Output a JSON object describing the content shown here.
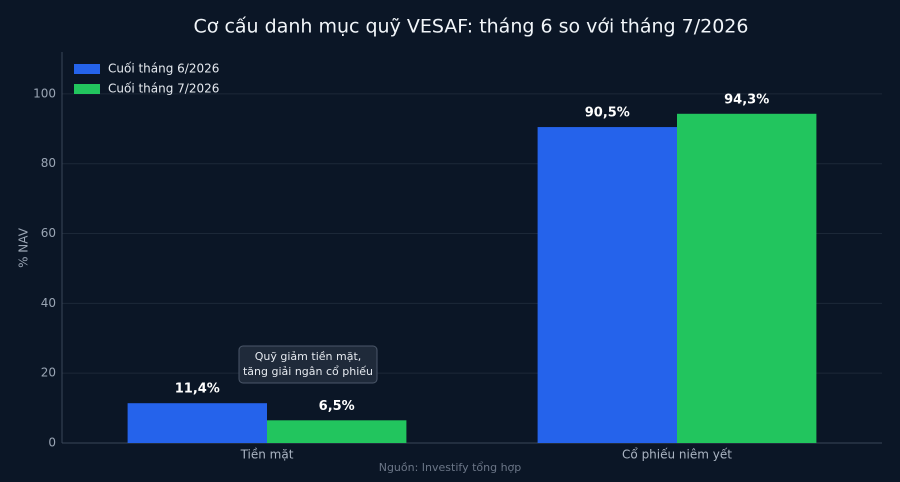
{
  "chart_data": {
    "type": "bar",
    "title": "Cơ cấu danh mục quỹ VESAF: tháng 6 so với tháng 7/2026",
    "ylabel": "% NAV",
    "categories": [
      "Tiền mặt",
      "Cổ phiếu niêm yết"
    ],
    "series": [
      {
        "name": "Cuối tháng 6/2026",
        "color": "#2563eb",
        "values": [
          11.4,
          90.5
        ],
        "value_labels": [
          "11,4%",
          "90,5%"
        ]
      },
      {
        "name": "Cuối tháng 7/2026",
        "color": "#22c55e",
        "values": [
          6.5,
          94.3
        ],
        "value_labels": [
          "6,5%",
          "94,3%"
        ]
      }
    ],
    "ylim": [
      0,
      112
    ],
    "yticks": [
      0,
      20,
      40,
      60,
      80,
      100
    ],
    "grid": true,
    "legend": "upper-left",
    "annotation": [
      "Quỹ giảm tiền mặt,",
      "tăng giải ngân cổ phiếu"
    ],
    "source": "Nguồn: Investify tổng hợp"
  }
}
